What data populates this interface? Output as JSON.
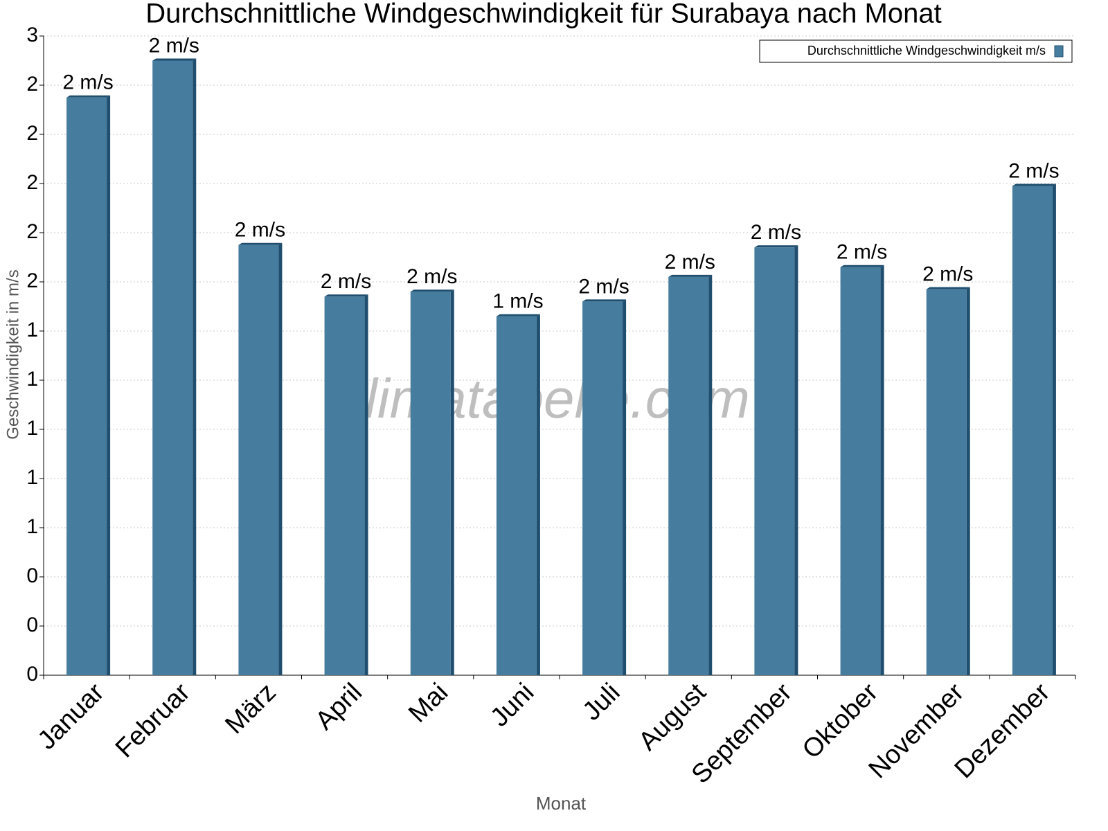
{
  "chart_data": {
    "type": "bar",
    "title": "Durchschnittliche Windgeschwindigkeit für Surabaya nach Monat",
    "x_label": "Monat",
    "y_label": "Geschwindigkeit in m/s",
    "watermark": "klimatabelle.com",
    "categories": [
      "Januar",
      "Februar",
      "März",
      "April",
      "Mai",
      "Juni",
      "Juli",
      "August",
      "September",
      "Oktober",
      "November",
      "Dezember"
    ],
    "series": [
      {
        "name": "Durchschnittliche Windgeschwindigkeit m/s",
        "color": "#467c9e",
        "values": [
          2.35,
          2.5,
          1.75,
          1.54,
          1.56,
          1.46,
          1.52,
          1.62,
          1.74,
          1.66,
          1.57,
          1.99
        ],
        "value_labels": [
          "2 m/s",
          "2 m/s",
          "2 m/s",
          "2 m/s",
          "2 m/s",
          "1 m/s",
          "2 m/s",
          "2 m/s",
          "2 m/s",
          "2 m/s",
          "2 m/s",
          "2 m/s"
        ]
      }
    ],
    "ylim": [
      0,
      2.6
    ],
    "yticks": [
      {
        "value": 0,
        "label": "0"
      },
      {
        "value": 0.2,
        "label": "0"
      },
      {
        "value": 0.4,
        "label": "0"
      },
      {
        "value": 0.6,
        "label": "1"
      },
      {
        "value": 0.8,
        "label": "1"
      },
      {
        "value": 1.0,
        "label": "1"
      },
      {
        "value": 1.2,
        "label": "1"
      },
      {
        "value": 1.4,
        "label": "1"
      },
      {
        "value": 1.6,
        "label": "2"
      },
      {
        "value": 1.8,
        "label": "2"
      },
      {
        "value": 2.0,
        "label": "2"
      },
      {
        "value": 2.2,
        "label": "2"
      },
      {
        "value": 2.4,
        "label": "2"
      },
      {
        "value": 2.6,
        "label": "3"
      }
    ],
    "grid": true,
    "legend": "top-right"
  }
}
